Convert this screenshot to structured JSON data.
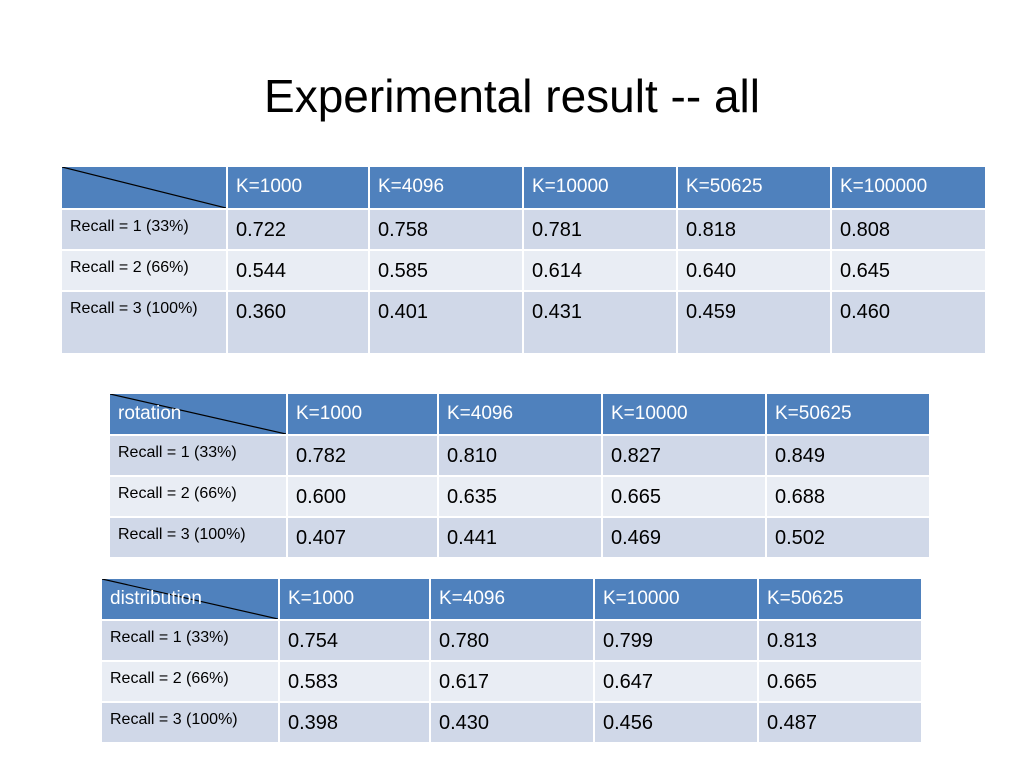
{
  "slide": {
    "title": "Experimental result -- all"
  },
  "colors": {
    "header_bg": "#4f81bd",
    "row_odd_bg": "#d0d8e8",
    "row_even_bg": "#e9edf4"
  },
  "tables": [
    {
      "corner_label": "",
      "columns": [
        "K=1000",
        "K=4096",
        "K=10000",
        "K=50625",
        "K=100000"
      ],
      "rows": [
        {
          "label": "Recall = 1 (33%)",
          "values": [
            "0.722",
            "0.758",
            "0.781",
            "0.818",
            "0.808"
          ]
        },
        {
          "label": "Recall = 2 (66%)",
          "values": [
            "0.544",
            "0.585",
            "0.614",
            "0.640",
            "0.645"
          ]
        },
        {
          "label": "Recall = 3 (100%)",
          "values": [
            "0.360",
            "0.401",
            "0.431",
            "0.459",
            "0.460"
          ]
        }
      ]
    },
    {
      "corner_label": "rotation",
      "columns": [
        "K=1000",
        "K=4096",
        "K=10000",
        "K=50625"
      ],
      "rows": [
        {
          "label": "Recall = 1 (33%)",
          "values": [
            "0.782",
            "0.810",
            "0.827",
            "0.849"
          ]
        },
        {
          "label": "Recall = 2 (66%)",
          "values": [
            "0.600",
            "0.635",
            "0.665",
            "0.688"
          ]
        },
        {
          "label": "Recall = 3 (100%)",
          "values": [
            "0.407",
            "0.441",
            "0.469",
            "0.502"
          ]
        }
      ]
    },
    {
      "corner_label": "distribution",
      "columns": [
        "K=1000",
        "K=4096",
        "K=10000",
        "K=50625"
      ],
      "rows": [
        {
          "label": "Recall = 1 (33%)",
          "values": [
            "0.754",
            "0.780",
            "0.799",
            "0.813"
          ]
        },
        {
          "label": "Recall = 2 (66%)",
          "values": [
            "0.583",
            "0.617",
            "0.647",
            "0.665"
          ]
        },
        {
          "label": "Recall = 3 (100%)",
          "values": [
            "0.398",
            "0.430",
            "0.456",
            "0.487"
          ]
        }
      ]
    }
  ]
}
